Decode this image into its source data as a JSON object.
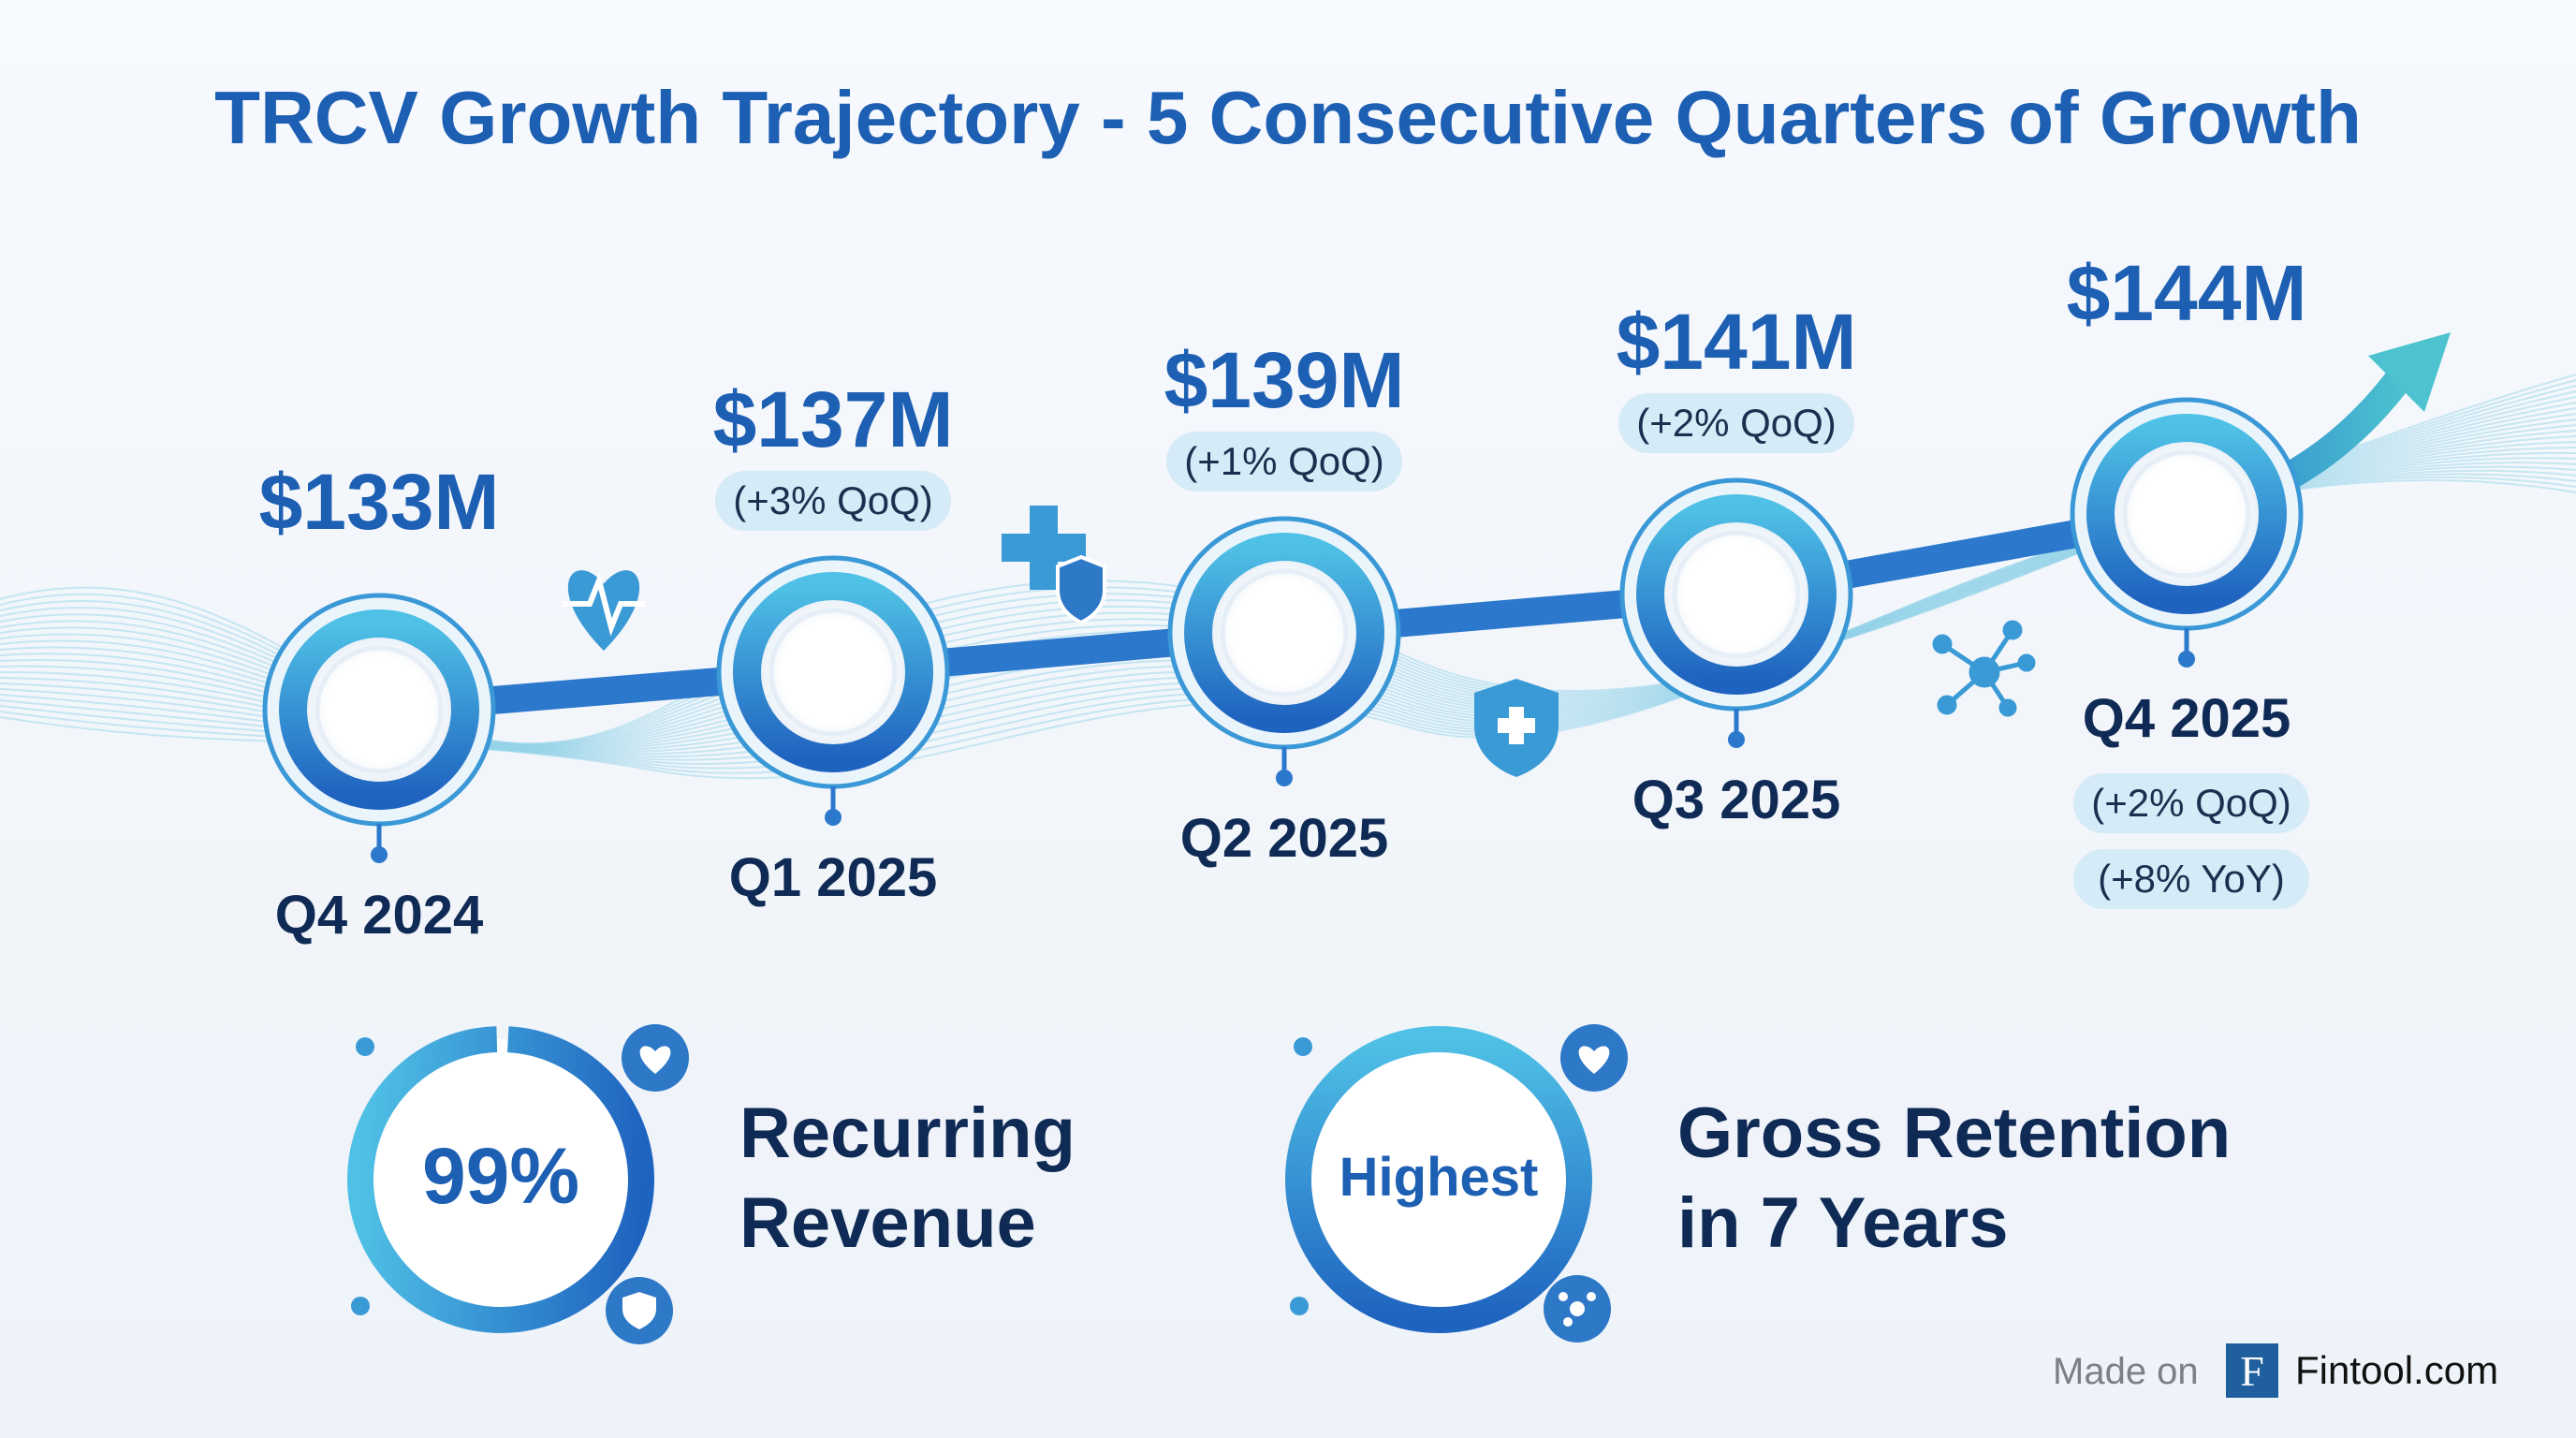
{
  "title": "TRCV Growth Trajectory - 5 Consecutive Quarters of Growth",
  "colors": {
    "primary": "#1d5fb3",
    "accent": "#3fb8d8",
    "pill": "#d6ebf8",
    "dark_text": "#0f2a55"
  },
  "quarters": [
    {
      "label": "Q4 2024",
      "value": "$133M",
      "badges": []
    },
    {
      "label": "Q1 2025",
      "value": "$137M",
      "badges": [
        "(+3% QoQ)"
      ]
    },
    {
      "label": "Q2 2025",
      "value": "$139M",
      "badges": [
        "(+1% QoQ)"
      ]
    },
    {
      "label": "Q3 2025",
      "value": "$141M",
      "badges": [
        "(+2% QoQ)"
      ]
    },
    {
      "label": "Q4 2025",
      "value": "$144M",
      "badges": [
        "(+2% QoQ)",
        "(+8% YoY)"
      ]
    }
  ],
  "decorative_icons": [
    "heart-pulse-icon",
    "medical-cross-shield-icon",
    "shield-cross-icon",
    "network-molecule-icon",
    "growth-arrow-icon"
  ],
  "stats": [
    {
      "ring_text": "99%",
      "line1": "Recurring",
      "line2": "Revenue",
      "ring_fill_percent": 99
    },
    {
      "ring_text": "Highest",
      "line1": "Gross Retention",
      "line2": "in 7 Years"
    }
  ],
  "footer": {
    "made_on": "Made on",
    "logo_letter": "F",
    "brand": "Fintool.com"
  }
}
